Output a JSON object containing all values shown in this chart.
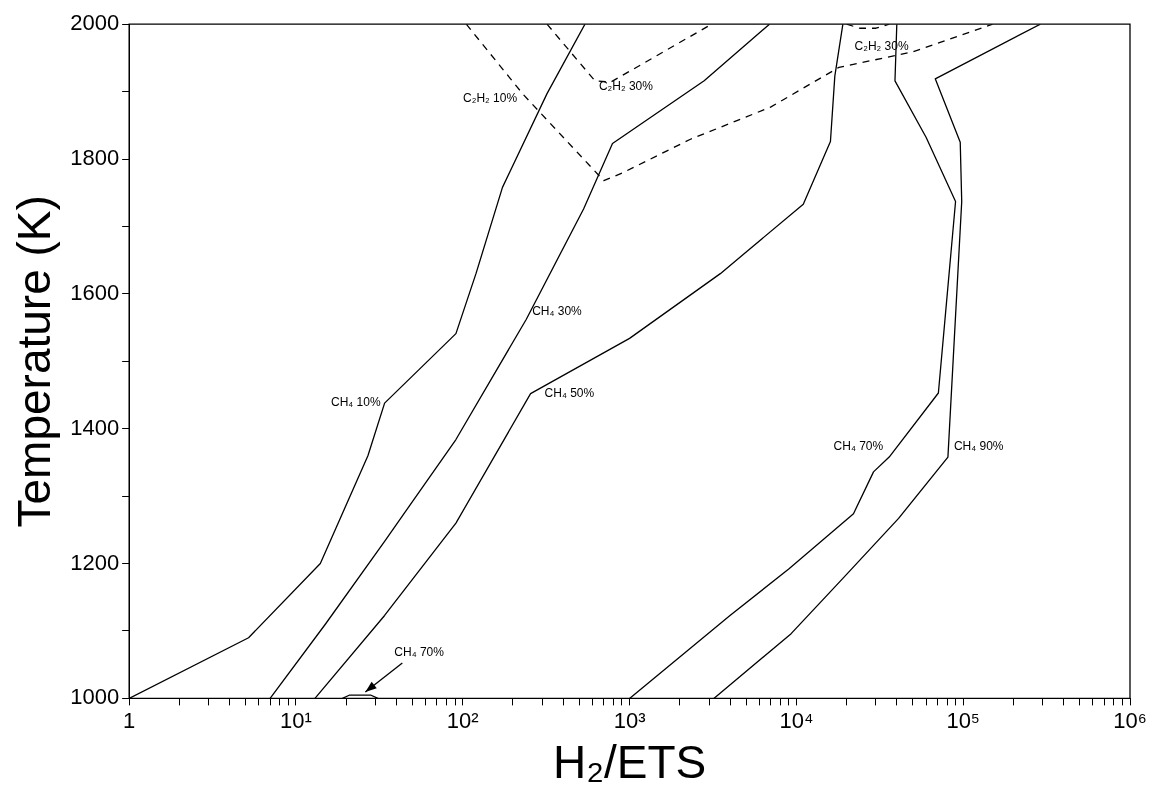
{
  "chart_data": {
    "type": "line",
    "xlabel": "H₂/ETS",
    "ylabel": "Temperature (K)",
    "log": "x",
    "grid": false,
    "legend": false,
    "marker": "none",
    "xlim": [
      1,
      1000000
    ],
    "ylim": [
      1000,
      2000
    ],
    "xticks": [
      {
        "value": 1,
        "label": "1"
      },
      {
        "value": 2,
        "label": null
      },
      {
        "value": 3,
        "label": null
      },
      {
        "value": 4,
        "label": null
      },
      {
        "value": 5,
        "label": null
      },
      {
        "value": 6,
        "label": null
      },
      {
        "value": 7,
        "label": null
      },
      {
        "value": 8,
        "label": null
      },
      {
        "value": 9,
        "label": null
      },
      {
        "value": 10,
        "label": "10¹"
      },
      {
        "value": 20,
        "label": null
      },
      {
        "value": 30,
        "label": null
      },
      {
        "value": 40,
        "label": null
      },
      {
        "value": 50,
        "label": null
      },
      {
        "value": 60,
        "label": null
      },
      {
        "value": 70,
        "label": null
      },
      {
        "value": 80,
        "label": null
      },
      {
        "value": 90,
        "label": null
      },
      {
        "value": 100,
        "label": "10²"
      },
      {
        "value": 200,
        "label": null
      },
      {
        "value": 300,
        "label": null
      },
      {
        "value": 400,
        "label": null
      },
      {
        "value": 500,
        "label": null
      },
      {
        "value": 600,
        "label": null
      },
      {
        "value": 700,
        "label": null
      },
      {
        "value": 800,
        "label": null
      },
      {
        "value": 900,
        "label": null
      },
      {
        "value": 1000,
        "label": "10³"
      },
      {
        "value": 2000,
        "label": null
      },
      {
        "value": 3000,
        "label": null
      },
      {
        "value": 4000,
        "label": null
      },
      {
        "value": 5000,
        "label": null
      },
      {
        "value": 6000,
        "label": null
      },
      {
        "value": 7000,
        "label": null
      },
      {
        "value": 8000,
        "label": null
      },
      {
        "value": 9000,
        "label": null
      },
      {
        "value": 10000,
        "label": "10⁴"
      },
      {
        "value": 20000,
        "label": null
      },
      {
        "value": 30000,
        "label": null
      },
      {
        "value": 40000,
        "label": null
      },
      {
        "value": 50000,
        "label": null
      },
      {
        "value": 60000,
        "label": null
      },
      {
        "value": 70000,
        "label": null
      },
      {
        "value": 80000,
        "label": null
      },
      {
        "value": 90000,
        "label": null
      },
      {
        "value": 100000,
        "label": "10⁵"
      },
      {
        "value": 200000,
        "label": null
      },
      {
        "value": 300000,
        "label": null
      },
      {
        "value": 400000,
        "label": null
      },
      {
        "value": 500000,
        "label": null
      },
      {
        "value": 600000,
        "label": null
      },
      {
        "value": 700000,
        "label": null
      },
      {
        "value": 800000,
        "label": null
      },
      {
        "value": 900000,
        "label": null
      },
      {
        "value": 1000000,
        "label": "10⁶"
      }
    ],
    "yticks": [
      1000,
      {
        "value": 1100,
        "label": null
      },
      1200,
      {
        "value": 1300,
        "label": null
      },
      1400,
      {
        "value": 1500,
        "label": null
      },
      1600,
      {
        "value": 1700,
        "label": null
      },
      1800,
      {
        "value": 1900,
        "label": null
      },
      2000
    ],
    "series": [
      {
        "name": "CH₄ 10%",
        "color": "#000000",
        "line_style": "solid",
        "x": [
          1,
          5.2,
          14,
          27,
          34,
          91,
          120,
          173,
          320,
          540
        ],
        "values": [
          1000,
          1090,
          1200,
          1360,
          1438,
          1541,
          1630,
          1758,
          1897,
          2000
        ]
      },
      {
        "name": "CH₄ 30%",
        "color": "#000000",
        "line_style": "solid",
        "x": [
          7,
          15,
          34,
          91,
          240,
          530,
          790,
          2800,
          6900
        ],
        "values": [
          1000,
          1110,
          1233,
          1384,
          1562,
          1726,
          1823,
          1916,
          2000
        ]
      },
      {
        "name": "CH₄ 50%",
        "color": "#000000",
        "line_style": "solid",
        "x": [
          13,
          34,
          91,
          255,
          1000,
          3500,
          11000,
          16000,
          17000,
          19000
        ],
        "values": [
          1000,
          1123,
          1260,
          1452,
          1534,
          1630,
          1733,
          1826,
          1923,
          2000
        ]
      },
      {
        "name": "CH₄ 70%",
        "color": "#000000",
        "line_style": "solid",
        "x": [
          1000,
          4000,
          9000,
          22000,
          29000,
          36000,
          71000,
          90000,
          60000,
          39000,
          40000
        ],
        "values": [
          1000,
          1123,
          1192,
          1274,
          1336,
          1358,
          1453,
          1737,
          1832,
          1916,
          2000
        ]
      },
      {
        "name": "CH₄ 90%",
        "color": "#000000",
        "line_style": "solid",
        "x": [
          3200,
          9300,
          19000,
          41000,
          81000,
          98000,
          96000,
          68000,
          290000
        ],
        "values": [
          1000,
          1096,
          1178,
          1267,
          1358,
          1737,
          1825,
          1919,
          2000
        ]
      },
      {
        "name": "C₂H₂ 10%",
        "color": "#000000",
        "line_style": "dashed",
        "x": [
          105,
          230,
          700,
          900,
          2300,
          7000,
          18000,
          50000,
          150000
        ],
        "values": [
          2000,
          1896,
          1768,
          1779,
          1829,
          1877,
          1936,
          1959,
          2000
        ]
      },
      {
        "name": "C₂H₂ 30%",
        "color": "#000000",
        "line_style": "dashed",
        "x": [
          320,
          620,
          770,
          3100
        ],
        "values": [
          2000,
          1916,
          1914,
          2000
        ]
      },
      {
        "name": "C₂H₂ 30%",
        "color": "#000000",
        "line_style": "dashed",
        "x": [
          20000,
          24000,
          30000,
          36000
        ],
        "values": [
          2000,
          1994,
          1994,
          2000
        ]
      },
      {
        "color": "#000000",
        "line_style": "solid",
        "x": [
          19,
          21,
          28,
          31
        ],
        "values": [
          1000,
          1005,
          1005,
          1000
        ]
      }
    ],
    "annotations": [
      {
        "text": "CH₄ 70%",
        "x": 25,
        "y": 1005
      }
    ]
  }
}
